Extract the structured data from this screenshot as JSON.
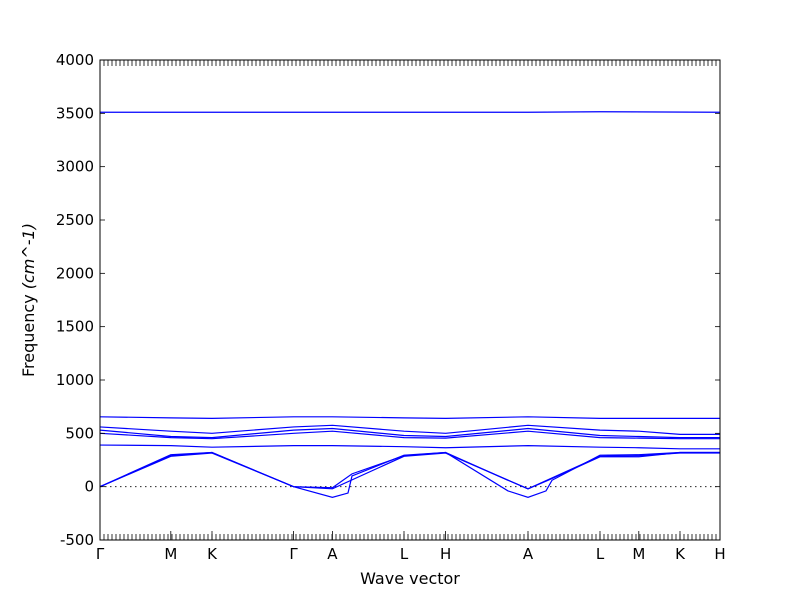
{
  "chart_data": {
    "type": "line",
    "xlabel": "Wave vector",
    "ylabel": "Frequency ",
    "ylabel_unit": "(cm^-1)",
    "ylim": [
      -500,
      4000
    ],
    "yticks": [
      -500,
      0,
      500,
      1000,
      1500,
      2000,
      2500,
      3000,
      3500,
      4000
    ],
    "xlim": [
      0,
      15.5
    ],
    "xticks": [
      {
        "label": "Γ",
        "x": 0
      },
      {
        "label": "M",
        "x": 1.77
      },
      {
        "label": "K",
        "x": 2.8
      },
      {
        "label": "Γ",
        "x": 4.84
      },
      {
        "label": "A",
        "x": 5.81
      },
      {
        "label": "L",
        "x": 7.6
      },
      {
        "label": "H",
        "x": 8.64
      },
      {
        "label": "A",
        "x": 10.7
      },
      {
        "label": "L",
        "x": 12.5
      },
      {
        "label": "M",
        "x": 13.47
      },
      {
        "label": "K",
        "x": 14.5
      },
      {
        "label": "H",
        "x": 15.5
      }
    ],
    "zero_line": true,
    "series": [
      {
        "values": [
          [
            0,
            3510
          ],
          [
            10.7,
            3510
          ],
          [
            12.5,
            3515
          ],
          [
            15.5,
            3510
          ]
        ]
      },
      {
        "values": [
          [
            0,
            655
          ],
          [
            1.77,
            645
          ],
          [
            2.8,
            640
          ],
          [
            4.84,
            655
          ],
          [
            5.81,
            655
          ],
          [
            7.6,
            645
          ],
          [
            8.64,
            640
          ],
          [
            10.7,
            655
          ],
          [
            12.5,
            640
          ],
          [
            13.47,
            640
          ],
          [
            14.5,
            640
          ],
          [
            15.5,
            640
          ]
        ]
      },
      {
        "values": [
          [
            0,
            560
          ],
          [
            1.77,
            520
          ],
          [
            2.8,
            500
          ],
          [
            4.84,
            560
          ],
          [
            5.81,
            575
          ],
          [
            7.6,
            520
          ],
          [
            8.64,
            500
          ],
          [
            10.7,
            575
          ],
          [
            12.5,
            530
          ],
          [
            13.47,
            520
          ],
          [
            14.5,
            490
          ],
          [
            15.5,
            490
          ]
        ]
      },
      {
        "values": [
          [
            0,
            530
          ],
          [
            1.77,
            470
          ],
          [
            2.8,
            460
          ],
          [
            4.84,
            530
          ],
          [
            5.81,
            545
          ],
          [
            7.6,
            480
          ],
          [
            8.64,
            470
          ],
          [
            10.7,
            545
          ],
          [
            12.5,
            480
          ],
          [
            13.47,
            470
          ],
          [
            14.5,
            460
          ],
          [
            15.5,
            460
          ]
        ]
      },
      {
        "values": [
          [
            0,
            500
          ],
          [
            1.77,
            460
          ],
          [
            2.8,
            450
          ],
          [
            4.84,
            500
          ],
          [
            5.81,
            520
          ],
          [
            7.6,
            460
          ],
          [
            8.64,
            455
          ],
          [
            10.7,
            520
          ],
          [
            12.5,
            460
          ],
          [
            13.47,
            455
          ],
          [
            14.5,
            450
          ],
          [
            15.5,
            450
          ]
        ]
      },
      {
        "values": [
          [
            0,
            390
          ],
          [
            1.77,
            385
          ],
          [
            2.8,
            370
          ],
          [
            4.84,
            385
          ],
          [
            5.81,
            385
          ],
          [
            7.6,
            375
          ],
          [
            8.64,
            365
          ],
          [
            10.7,
            385
          ],
          [
            12.5,
            370
          ],
          [
            13.47,
            365
          ],
          [
            14.5,
            355
          ],
          [
            15.5,
            355
          ]
        ]
      },
      {
        "values": [
          [
            0,
            0
          ],
          [
            1.77,
            290
          ],
          [
            2.8,
            320
          ],
          [
            4.84,
            0
          ],
          [
            5.81,
            -10
          ],
          [
            6.3,
            120
          ],
          [
            7.6,
            290
          ],
          [
            8.64,
            320
          ],
          [
            10.2,
            60
          ],
          [
            10.7,
            -20
          ],
          [
            11.2,
            60
          ],
          [
            12.5,
            280
          ],
          [
            13.47,
            280
          ],
          [
            14.5,
            320
          ],
          [
            15.5,
            320
          ]
        ]
      },
      {
        "values": [
          [
            0,
            0
          ],
          [
            1.77,
            300
          ],
          [
            2.8,
            320
          ],
          [
            4.84,
            0
          ],
          [
            5.81,
            -100
          ],
          [
            6.2,
            -60
          ],
          [
            6.3,
            100
          ],
          [
            7.6,
            295
          ],
          [
            8.64,
            320
          ],
          [
            10.2,
            -40
          ],
          [
            10.7,
            -100
          ],
          [
            11.15,
            -40
          ],
          [
            11.3,
            60
          ],
          [
            12.5,
            295
          ],
          [
            13.47,
            300
          ],
          [
            14.5,
            320
          ],
          [
            15.5,
            320
          ]
        ]
      },
      {
        "values": [
          [
            0,
            0
          ],
          [
            1.77,
            285
          ],
          [
            2.8,
            315
          ],
          [
            4.84,
            0
          ],
          [
            5.81,
            -20
          ],
          [
            7.6,
            285
          ],
          [
            8.64,
            315
          ],
          [
            10.7,
            -20
          ],
          [
            12.5,
            285
          ],
          [
            13.47,
            290
          ],
          [
            14.5,
            315
          ],
          [
            15.5,
            315
          ]
        ]
      }
    ]
  }
}
